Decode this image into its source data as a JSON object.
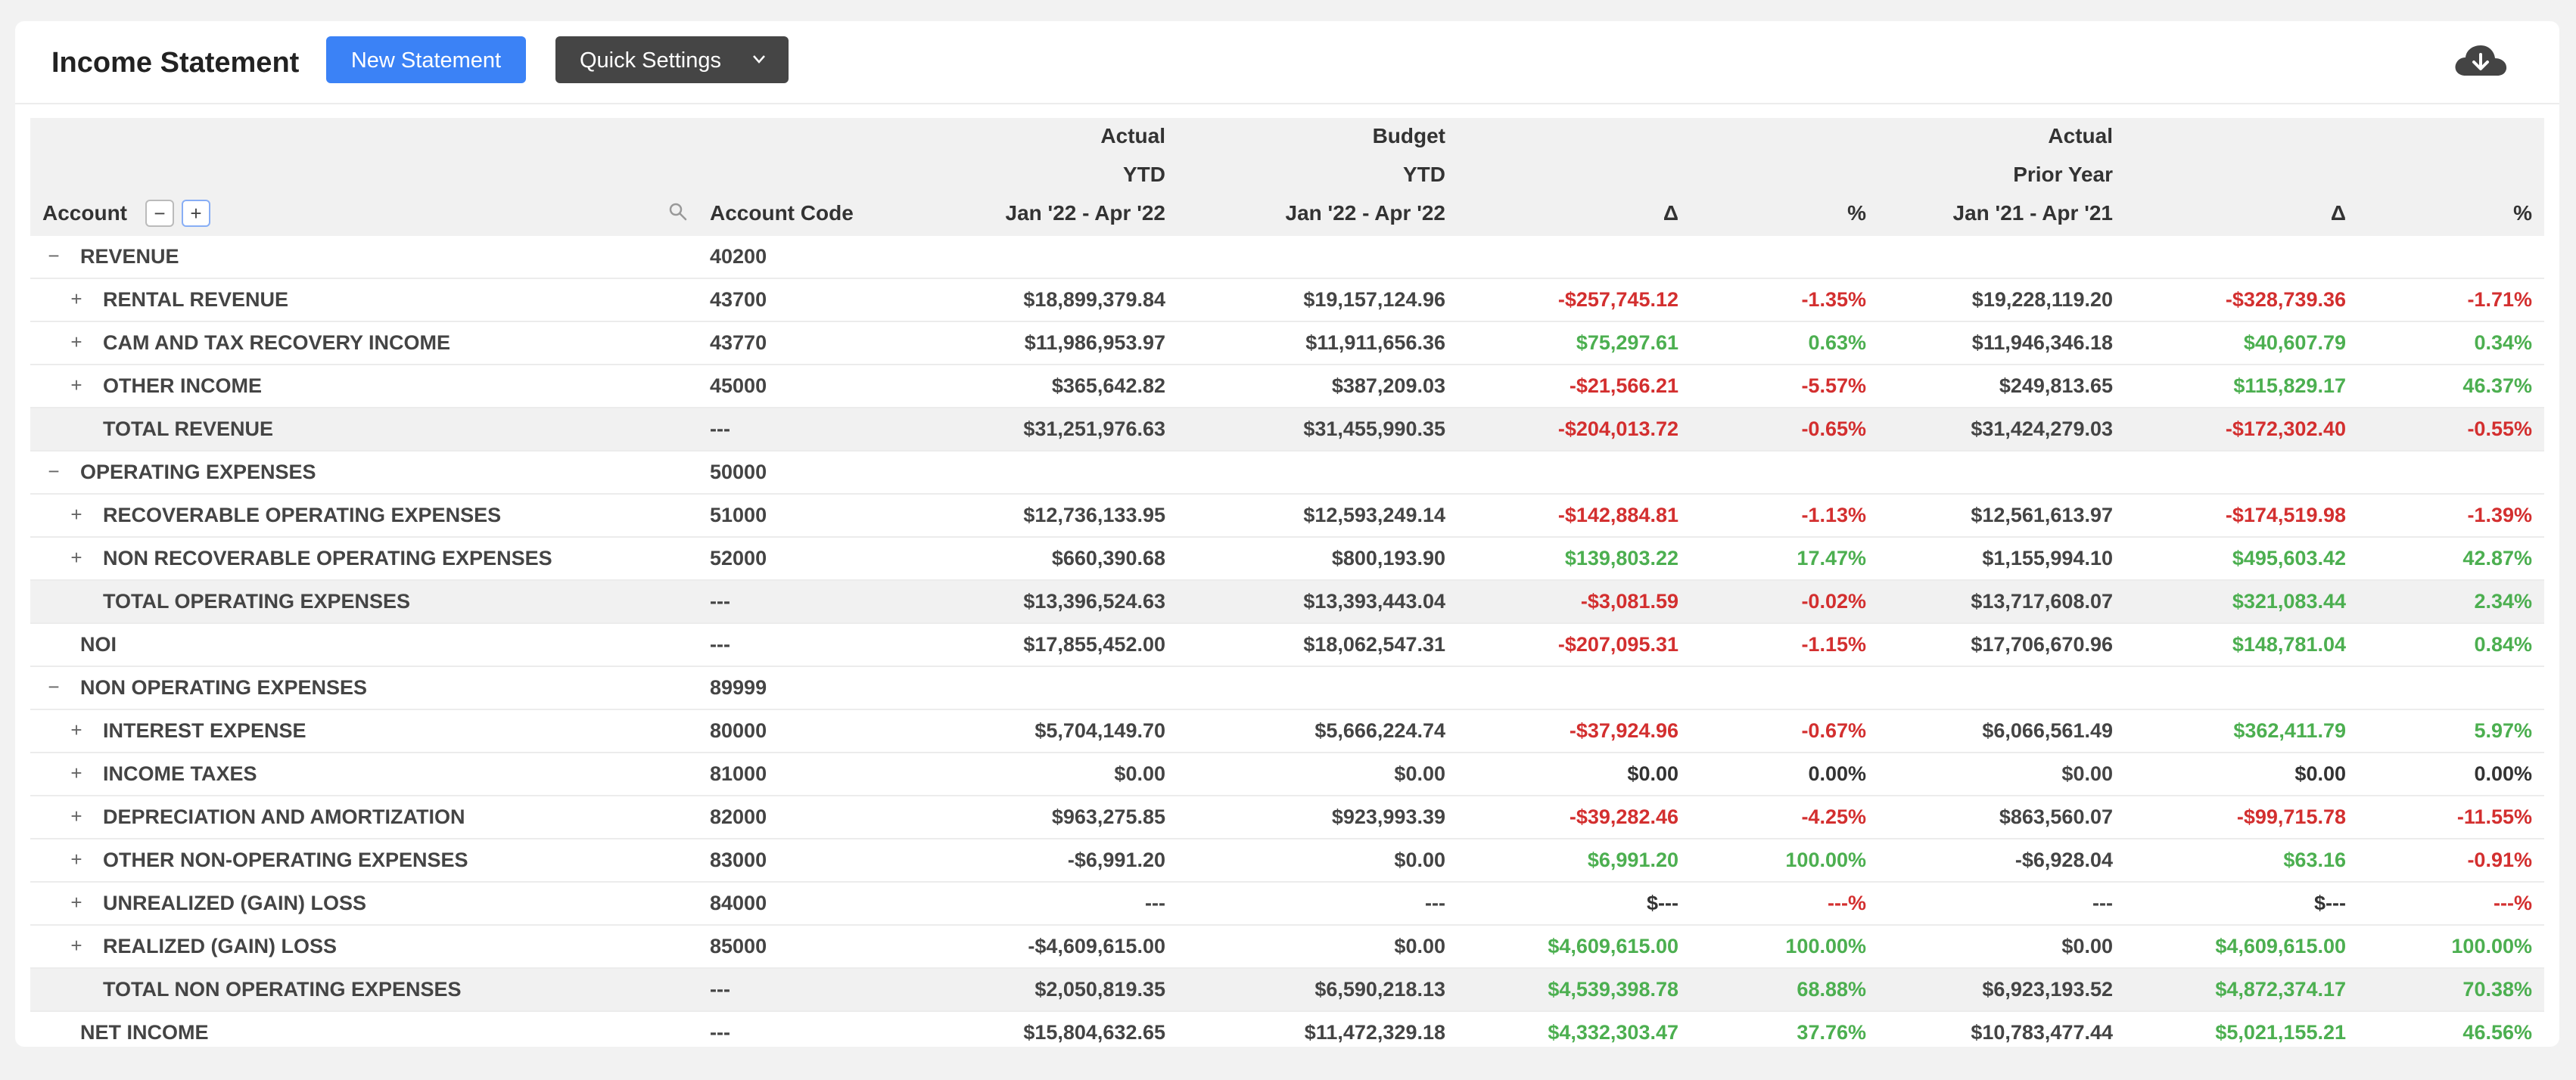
{
  "header": {
    "title": "Income Statement",
    "new_button": "New Statement",
    "quick_settings": "Quick Settings"
  },
  "columns": {
    "account": "Account",
    "collapse": "−",
    "expand": "+",
    "account_code": "Account Code",
    "actual_group": "Actual",
    "actual_period_type": "YTD",
    "actual_range": "Jan '22 - Apr '22",
    "budget_group": "Budget",
    "budget_period_type": "YTD",
    "budget_range": "Jan '22 - Apr '22",
    "delta1": "Δ",
    "pct1": "%",
    "prior_group": "Actual",
    "prior_period_type": "Prior Year",
    "prior_range": "Jan '21 - Apr '21",
    "delta2": "Δ",
    "pct2": "%"
  },
  "rows": [
    {
      "name": "REVENUE",
      "code": "40200",
      "level": 0,
      "toggle": "−",
      "actual": "",
      "budget": "",
      "d1": "",
      "p1": "",
      "prior": "",
      "d2": "",
      "p2": "",
      "total": false
    },
    {
      "name": "RENTAL REVENUE",
      "code": "43700",
      "level": 1,
      "toggle": "+",
      "actual": "$18,899,379.84",
      "budget": "$19,157,124.96",
      "d1": "-$257,745.12",
      "p1": "-1.35%",
      "prior": "$19,228,119.20",
      "d2": "-$328,739.36",
      "p2": "-1.71%",
      "total": false
    },
    {
      "name": "CAM AND TAX RECOVERY INCOME",
      "code": "43770",
      "level": 1,
      "toggle": "+",
      "actual": "$11,986,953.97",
      "budget": "$11,911,656.36",
      "d1": "$75,297.61",
      "p1": "0.63%",
      "prior": "$11,946,346.18",
      "d2": "$40,607.79",
      "p2": "0.34%",
      "total": false
    },
    {
      "name": "OTHER INCOME",
      "code": "45000",
      "level": 1,
      "toggle": "+",
      "actual": "$365,642.82",
      "budget": "$387,209.03",
      "d1": "-$21,566.21",
      "p1": "-5.57%",
      "prior": "$249,813.65",
      "d2": "$115,829.17",
      "p2": "46.37%",
      "total": false
    },
    {
      "name": "TOTAL REVENUE",
      "code": "---",
      "level": 1,
      "toggle": "",
      "actual": "$31,251,976.63",
      "budget": "$31,455,990.35",
      "d1": "-$204,013.72",
      "p1": "-0.65%",
      "prior": "$31,424,279.03",
      "d2": "-$172,302.40",
      "p2": "-0.55%",
      "total": true
    },
    {
      "name": "OPERATING EXPENSES",
      "code": "50000",
      "level": 0,
      "toggle": "−",
      "actual": "",
      "budget": "",
      "d1": "",
      "p1": "",
      "prior": "",
      "d2": "",
      "p2": "",
      "total": false
    },
    {
      "name": "RECOVERABLE OPERATING EXPENSES",
      "code": "51000",
      "level": 1,
      "toggle": "+",
      "actual": "$12,736,133.95",
      "budget": "$12,593,249.14",
      "d1": "-$142,884.81",
      "p1": "-1.13%",
      "prior": "$12,561,613.97",
      "d2": "-$174,519.98",
      "p2": "-1.39%",
      "total": false
    },
    {
      "name": "NON RECOVERABLE OPERATING EXPENSES",
      "code": "52000",
      "level": 1,
      "toggle": "+",
      "actual": "$660,390.68",
      "budget": "$800,193.90",
      "d1": "$139,803.22",
      "p1": "17.47%",
      "prior": "$1,155,994.10",
      "d2": "$495,603.42",
      "p2": "42.87%",
      "total": false
    },
    {
      "name": "TOTAL OPERATING EXPENSES",
      "code": "---",
      "level": 1,
      "toggle": "",
      "actual": "$13,396,524.63",
      "budget": "$13,393,443.04",
      "d1": "-$3,081.59",
      "p1": "-0.02%",
      "prior": "$13,717,608.07",
      "d2": "$321,083.44",
      "p2": "2.34%",
      "total": true
    },
    {
      "name": "NOI",
      "code": "---",
      "level": 0,
      "toggle": "",
      "actual": "$17,855,452.00",
      "budget": "$18,062,547.31",
      "d1": "-$207,095.31",
      "p1": "-1.15%",
      "prior": "$17,706,670.96",
      "d2": "$148,781.04",
      "p2": "0.84%",
      "total": false
    },
    {
      "name": "NON OPERATING EXPENSES",
      "code": "89999",
      "level": 0,
      "toggle": "−",
      "actual": "",
      "budget": "",
      "d1": "",
      "p1": "",
      "prior": "",
      "d2": "",
      "p2": "",
      "total": false
    },
    {
      "name": "INTEREST EXPENSE",
      "code": "80000",
      "level": 1,
      "toggle": "+",
      "actual": "$5,704,149.70",
      "budget": "$5,666,224.74",
      "d1": "-$37,924.96",
      "p1": "-0.67%",
      "prior": "$6,066,561.49",
      "d2": "$362,411.79",
      "p2": "5.97%",
      "total": false
    },
    {
      "name": "INCOME TAXES",
      "code": "81000",
      "level": 1,
      "toggle": "+",
      "actual": "$0.00",
      "budget": "$0.00",
      "d1": "$0.00",
      "p1": "0.00%",
      "prior": "$0.00",
      "d2": "$0.00",
      "p2": "0.00%",
      "total": false
    },
    {
      "name": "DEPRECIATION AND AMORTIZATION",
      "code": "82000",
      "level": 1,
      "toggle": "+",
      "actual": "$963,275.85",
      "budget": "$923,993.39",
      "d1": "-$39,282.46",
      "p1": "-4.25%",
      "prior": "$863,560.07",
      "d2": "-$99,715.78",
      "p2": "-11.55%",
      "total": false
    },
    {
      "name": "OTHER NON-OPERATING EXPENSES",
      "code": "83000",
      "level": 1,
      "toggle": "+",
      "actual": "-$6,991.20",
      "budget": "$0.00",
      "d1": "$6,991.20",
      "p1": "100.00%",
      "prior": "-$6,928.04",
      "d2": "$63.16",
      "p2": "-0.91%",
      "total": false
    },
    {
      "name": "UNREALIZED (GAIN) LOSS",
      "code": "84000",
      "level": 1,
      "toggle": "+",
      "actual": "---",
      "budget": "---",
      "d1": "$---",
      "p1": "---%",
      "prior": "---",
      "d2": "$---",
      "p2": "---%",
      "total": false
    },
    {
      "name": "REALIZED (GAIN) LOSS",
      "code": "85000",
      "level": 1,
      "toggle": "+",
      "actual": "-$4,609,615.00",
      "budget": "$0.00",
      "d1": "$4,609,615.00",
      "p1": "100.00%",
      "prior": "$0.00",
      "d2": "$4,609,615.00",
      "p2": "100.00%",
      "total": false
    },
    {
      "name": "TOTAL NON OPERATING EXPENSES",
      "code": "---",
      "level": 1,
      "toggle": "",
      "actual": "$2,050,819.35",
      "budget": "$6,590,218.13",
      "d1": "$4,539,398.78",
      "p1": "68.88%",
      "prior": "$6,923,193.52",
      "d2": "$4,872,374.17",
      "p2": "70.38%",
      "total": true
    },
    {
      "name": "NET INCOME",
      "code": "---",
      "level": 0,
      "toggle": "",
      "actual": "$15,804,632.65",
      "budget": "$11,472,329.18",
      "d1": "$4,332,303.47",
      "p1": "37.76%",
      "prior": "$10,783,477.44",
      "d2": "$5,021,155.21",
      "p2": "46.56%",
      "total": false
    }
  ],
  "colors": {
    "accent": "#3b82f6",
    "negative": "#d32f2f",
    "positive": "#4caf50",
    "dark_button": "#454545"
  },
  "icons": {
    "download": "cloud-download-icon",
    "search": "search-icon",
    "dropdown": "chevron-down-icon"
  }
}
